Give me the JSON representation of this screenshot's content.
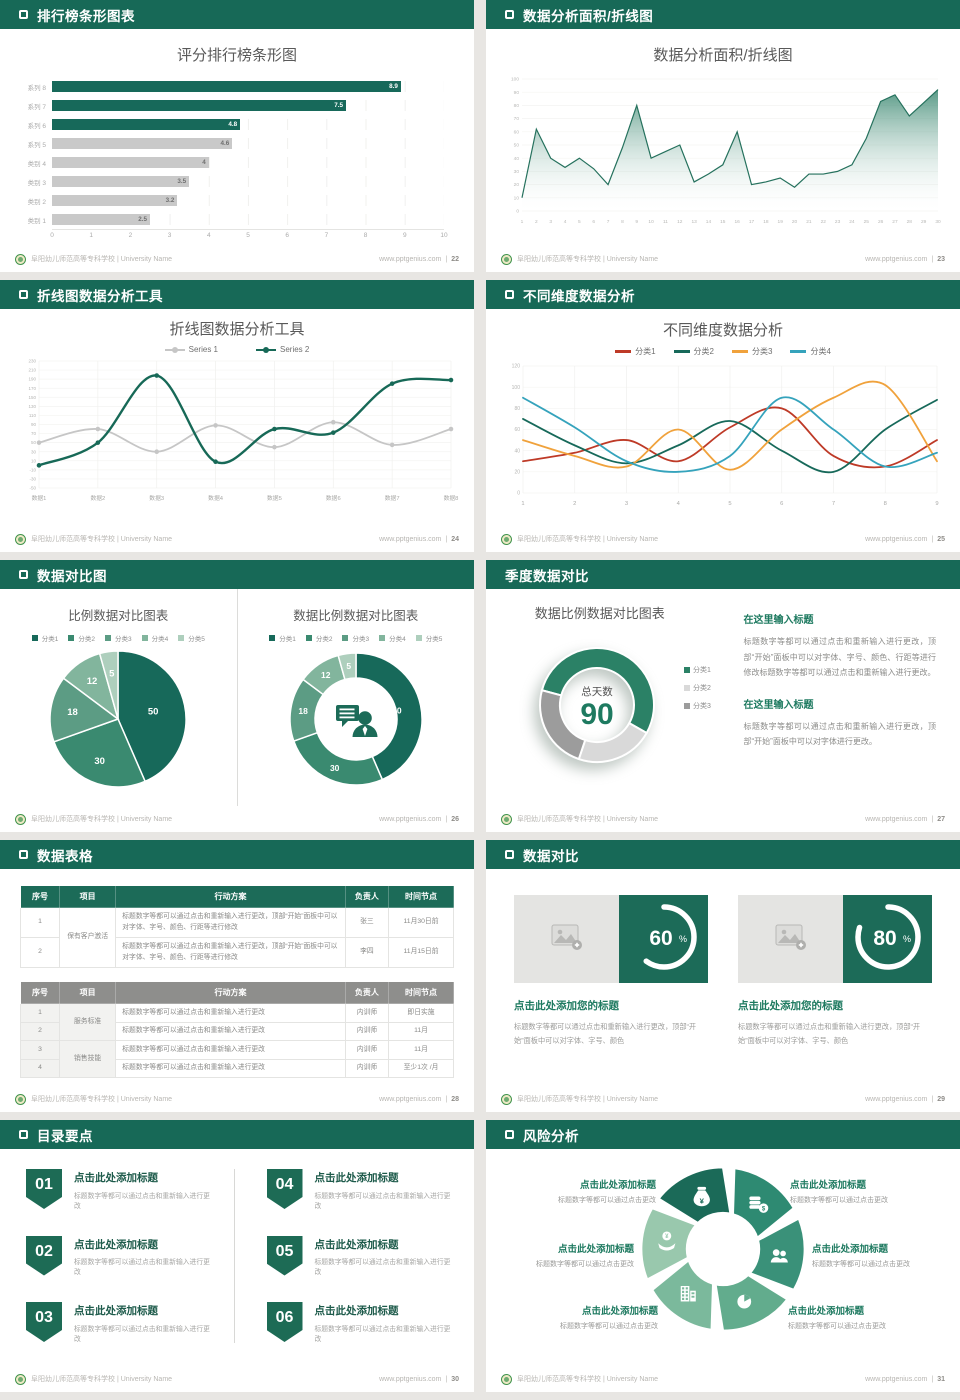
{
  "footer": {
    "school": "阜阳幼儿师范高等专科学校 | University Name",
    "site": "www.pptgenius.com",
    "sep": "|"
  },
  "slides": [
    {
      "title": "排行榜条形图表",
      "page_no": "22"
    },
    {
      "title": "数据分析面积/折线图",
      "page_no": "23"
    },
    {
      "title": "折线图数据分析工具",
      "page_no": "24"
    },
    {
      "title": "不同维度数据分析",
      "page_no": "25"
    },
    {
      "title": "数据对比图",
      "page_no": "26"
    },
    {
      "title": "季度数据对比",
      "page_no": "27"
    },
    {
      "title": "数据表格",
      "page_no": "28"
    },
    {
      "title": "数据对比",
      "page_no": "29"
    },
    {
      "title": "目录要点",
      "page_no": "30"
    },
    {
      "title": "风险分析",
      "page_no": "31"
    }
  ],
  "chart_data": [
    {
      "type": "bar",
      "orientation": "horizontal",
      "title": "评分排行榜条形图",
      "categories": [
        "系列 8",
        "系列 7",
        "系列 6",
        "系列 5",
        "类别 4",
        "类别 3",
        "类别 2",
        "类别 1"
      ],
      "values": [
        8.9,
        7.5,
        4.8,
        4.6,
        4,
        3.5,
        3.2,
        2.5
      ],
      "colors": [
        "#17695A",
        "#17695A",
        "#17695A",
        "#C9C9C9",
        "#C9C9C9",
        "#C9C9C9",
        "#C9C9C9",
        "#C9C9C9"
      ],
      "xlim": [
        0,
        10
      ],
      "xtick_step": 1,
      "grid": true
    },
    {
      "type": "area",
      "title": "数据分析面积/折线图",
      "x": [
        1,
        2,
        3,
        4,
        5,
        6,
        7,
        8,
        9,
        10,
        11,
        12,
        13,
        14,
        15,
        16,
        17,
        18,
        19,
        20,
        21,
        22,
        23,
        24,
        25,
        26,
        27,
        28,
        29,
        30
      ],
      "values": [
        10,
        62,
        40,
        33,
        40,
        32,
        20,
        48,
        80,
        40,
        45,
        50,
        22,
        28,
        35,
        60,
        20,
        22,
        25,
        18,
        28,
        28,
        30,
        35,
        55,
        83,
        88,
        72,
        82,
        92
      ],
      "ylim": [
        0,
        100
      ],
      "ystep": 10,
      "line_color": "#25715D",
      "fill_color": "#2E8067"
    },
    {
      "type": "line",
      "title": "折线图数据分析工具",
      "categories": [
        "数据1",
        "数据2",
        "数据3",
        "数据4",
        "数据5",
        "数据6",
        "数据7",
        "数据8"
      ],
      "ylim": [
        -50,
        230
      ],
      "ystep": 20,
      "legend_position": "top",
      "series": [
        {
          "name": "Series 1",
          "color": "#C6C6C6",
          "values": [
            50,
            80,
            30,
            88,
            40,
            95,
            45,
            80
          ]
        },
        {
          "name": "Series 2",
          "color": "#176957",
          "values": [
            0,
            50,
            198,
            8,
            80,
            72,
            180,
            188
          ]
        }
      ]
    },
    {
      "type": "line",
      "title": "不同维度数据分析",
      "x": [
        1,
        2,
        3,
        4,
        5,
        6,
        7,
        8,
        9
      ],
      "ylim": [
        0,
        120
      ],
      "ystep": 20,
      "legend_position": "top",
      "series": [
        {
          "name": "分类1",
          "color": "#BE3A27",
          "values": [
            30,
            38,
            50,
            30,
            62,
            80,
            35,
            25,
            50
          ]
        },
        {
          "name": "分类2",
          "color": "#17695A",
          "values": [
            70,
            45,
            28,
            45,
            68,
            40,
            20,
            60,
            88
          ]
        },
        {
          "name": "分类3",
          "color": "#F0A23C",
          "values": [
            50,
            35,
            25,
            60,
            22,
            60,
            90,
            102,
            30
          ]
        },
        {
          "name": "分类4",
          "color": "#35A3BC",
          "values": [
            90,
            62,
            30,
            20,
            35,
            90,
            60,
            25,
            38
          ]
        }
      ]
    },
    {
      "type": "pie",
      "title": "比例数据对比图表",
      "labels": [
        "分类1",
        "分类2",
        "分类3",
        "分类4",
        "分类5"
      ],
      "values": [
        50,
        30,
        18,
        12,
        5
      ],
      "colors": [
        "#17695A",
        "#3A8A70",
        "#5C9C84",
        "#82B59D",
        "#AECFBD"
      ]
    },
    {
      "type": "donut",
      "title": "数据比例数据对比图表",
      "labels": [
        "分类1",
        "分类2",
        "分类3",
        "分类4",
        "分类5"
      ],
      "values": [
        50,
        30,
        18,
        12,
        5
      ],
      "colors": [
        "#17695A",
        "#3A8A70",
        "#5C9C84",
        "#82B59D",
        "#AECFBD"
      ],
      "center_icon": "person-chat"
    },
    {
      "type": "donut",
      "title": "数据比例数据对比图表",
      "labels": [
        "分类1",
        "分类2",
        "分类3"
      ],
      "values": [
        54,
        22,
        24
      ],
      "colors": [
        "#2B8166",
        "#D9D9D9",
        "#9C9C9C"
      ],
      "start_angle": 285,
      "center_label": "总天数",
      "center_value": "90"
    },
    {
      "type": "ring",
      "values": [
        60,
        80
      ],
      "unit": "%"
    }
  ],
  "slide6": {
    "blocks": [
      {
        "heading": "在这里输入标题",
        "text": "标题数字等都可以通过点击和重新输入进行更改，顶部“开始”面板中可以对字体、字号、颜色、行距等进行修改标题数字等都可以通过点击和重新输入进行更改。"
      },
      {
        "heading": "在这里输入标题",
        "text": "标题数字等都可以通过点击和重新输入进行更改，顶部“开始”面板中可以对字体进行更改。"
      }
    ]
  },
  "slide7": {
    "tables": [
      {
        "columns": [
          "序号",
          "项目",
          "行动方案",
          "负责人",
          "时间节点"
        ],
        "groups": [
          "保有客户激活"
        ],
        "rows": [
          {
            "num": "1",
            "plan": "标题数字等都可以通过点击和重新输入进行更改，顶部“开始”面板中可以对字体、字号、颜色、行距等进行修改",
            "owner": "张三",
            "time": "11月30日前"
          },
          {
            "num": "2",
            "plan": "标题数字等都可以通过点击和重新输入进行更改，顶部“开始”面板中可以对字体、字号、颜色、行距等进行修改",
            "owner": "李四",
            "time": "11月15日前"
          }
        ]
      },
      {
        "columns": [
          "序号",
          "项目",
          "行动方案",
          "负责人",
          "时间节点"
        ],
        "groups": [
          "服务标准",
          "销售技能"
        ],
        "rows": [
          {
            "num": "1",
            "plan": "标题数字等都可以通过点击和重新输入进行更改",
            "owner": "内训师",
            "time": "即日实施"
          },
          {
            "num": "2",
            "plan": "标题数字等都可以通过点击和重新输入进行更改",
            "owner": "内训师",
            "time": "11月"
          },
          {
            "num": "3",
            "plan": "标题数字等都可以通过点击和重新输入进行更改",
            "owner": "内训师",
            "time": "11月"
          },
          {
            "num": "4",
            "plan": "标题数字等都可以通过点击和重新输入进行更改",
            "owner": "内训师",
            "time": "至少1次 /月"
          }
        ]
      }
    ]
  },
  "slide8": {
    "cards": [
      {
        "percent": "60",
        "title": "点击此处添加您的标题",
        "text": "标题数字等都可以通过点击和重新输入进行更改，顶部“开始”面板中可以对字体、字号、颜色"
      },
      {
        "percent": "80",
        "title": "点击此处添加您的标题",
        "text": "标题数字等都可以通过点击和重新输入进行更改，顶部“开始”面板中可以对字体、字号、颜色"
      }
    ]
  },
  "slide9": {
    "items": [
      {
        "num": "01",
        "title": "点击此处添加标题",
        "sub": "标题数字等都可以通过点击和重新输入进行更改"
      },
      {
        "num": "02",
        "title": "点击此处添加标题",
        "sub": "标题数字等都可以通过点击和重新输入进行更改"
      },
      {
        "num": "03",
        "title": "点击此处添加标题",
        "sub": "标题数字等都可以通过点击和重新输入进行更改"
      },
      {
        "num": "04",
        "title": "点击此处添加标题",
        "sub": "标题数字等都可以通过点击和重新输入进行更改"
      },
      {
        "num": "05",
        "title": "点击此处添加标题",
        "sub": "标题数字等都可以通过点击和重新输入进行更改"
      },
      {
        "num": "06",
        "title": "点击此处添加标题",
        "sub": "标题数字等都可以通过点击和重新输入进行更改"
      }
    ]
  },
  "slide10": {
    "blades": [
      "#1B6A58",
      "#2E8A72",
      "#3A9179",
      "#62AC8D",
      "#7BB99C",
      "#99C8AD"
    ],
    "icons": [
      "moneybag-icon",
      "coins-icon",
      "people-icon",
      "pie-icon",
      "building-icon",
      "hand-money-icon"
    ],
    "labels": [
      {
        "title": "点击此处添加标题",
        "sub": "标题数字等都可以通过点击更改"
      },
      {
        "title": "点击此处添加标题",
        "sub": "标题数字等都可以通过点击更改"
      },
      {
        "title": "点击此处添加标题",
        "sub": "标题数字等都可以通过点击更改"
      },
      {
        "title": "点击此处添加标题",
        "sub": "标题数字等都可以通过点击更改"
      },
      {
        "title": "点击此处添加标题",
        "sub": "标题数字等都可以通过点击更改"
      },
      {
        "title": "点击此处添加标题",
        "sub": "标题数字等都可以通过点击更改"
      }
    ]
  }
}
